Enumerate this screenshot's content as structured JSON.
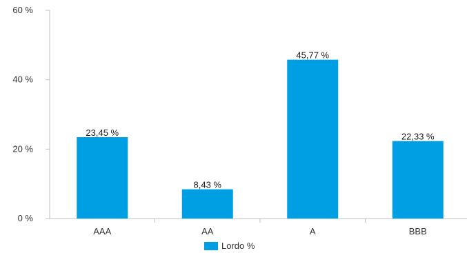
{
  "chart_data": {
    "type": "bar",
    "categories": [
      "AAA",
      "AA",
      "A",
      "BBB"
    ],
    "series": [
      {
        "name": "Lordo %",
        "values": [
          23.45,
          8.43,
          45.77,
          22.33
        ],
        "data_labels": [
          "23,45 %",
          "8,43 %",
          "45,77 %",
          "22,33 %"
        ],
        "color": "#009fe3"
      }
    ],
    "yticks": [
      0,
      20,
      40,
      60
    ],
    "ytick_labels": [
      "0 %",
      "20 %",
      "40 %",
      "60 %"
    ],
    "ylim": [
      0,
      60
    ],
    "grid": false,
    "legend": {
      "position": "bottom",
      "label": "Lordo %"
    }
  }
}
